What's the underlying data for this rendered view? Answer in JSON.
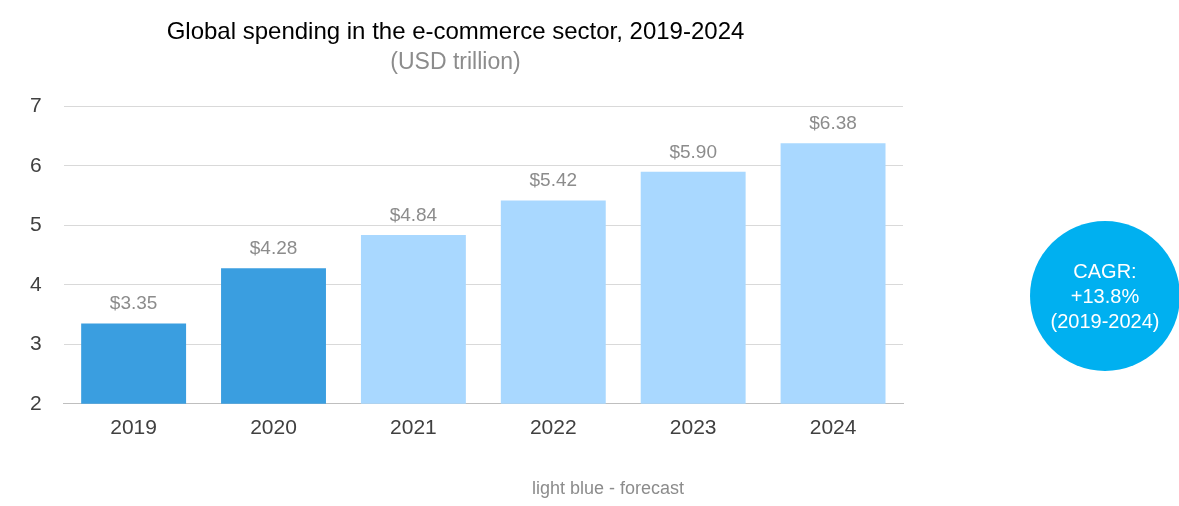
{
  "chart_data": {
    "type": "bar",
    "title": "Global spending in the e-commerce sector, 2019-2024",
    "subtitle": "(USD trillion)",
    "categories": [
      "2019",
      "2020",
      "2021",
      "2022",
      "2023",
      "2024"
    ],
    "values": [
      3.35,
      4.28,
      4.84,
      5.42,
      5.9,
      6.38
    ],
    "colors": [
      "#3a9ee0",
      "#3a9ee0",
      "#a9d8ff",
      "#a9d8ff",
      "#a9d8ff",
      "#a9d8ff"
    ],
    "value_labels": [
      "$3.35",
      "$4.28",
      "$4.84",
      "$5.42",
      "$5.90",
      "$6.38"
    ],
    "ylim": [
      2,
      7
    ],
    "yticks": [
      2,
      3,
      4,
      5,
      6,
      7
    ],
    "grid": "y",
    "legend": false,
    "annotations": [
      "CAGR:\n+13.8%\n(2019-2024)",
      "light blue - forecast"
    ]
  }
}
